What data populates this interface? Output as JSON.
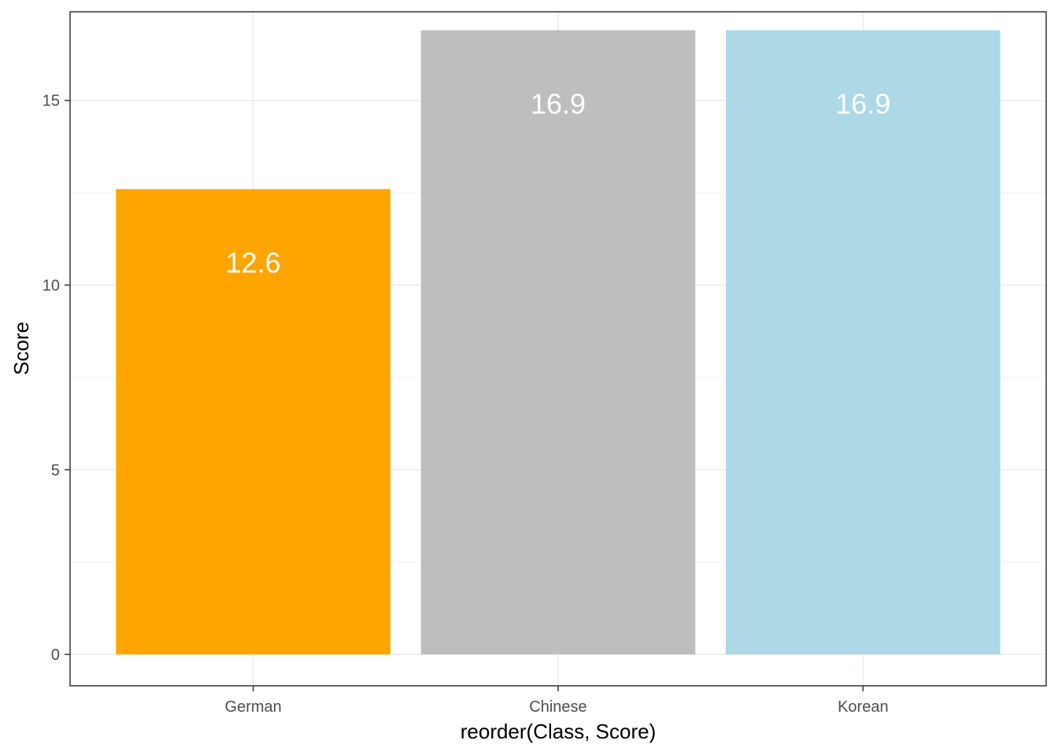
{
  "chart_data": {
    "type": "bar",
    "title": "",
    "xlabel": "reorder(Class, Score)",
    "ylabel": "Score",
    "categories": [
      "German",
      "Chinese",
      "Korean"
    ],
    "values": [
      12.6,
      16.9,
      16.9
    ],
    "value_labels": [
      "12.6",
      "16.9",
      "16.9"
    ],
    "colors": [
      "#ffa500",
      "#bebebe",
      "#add8e6"
    ],
    "ylim": [
      -0.85,
      17.4
    ],
    "yticks": [
      0,
      5,
      10,
      15
    ],
    "ytick_labels": [
      "0",
      "5",
      "10",
      "15"
    ],
    "grid": true,
    "legend": "none"
  }
}
